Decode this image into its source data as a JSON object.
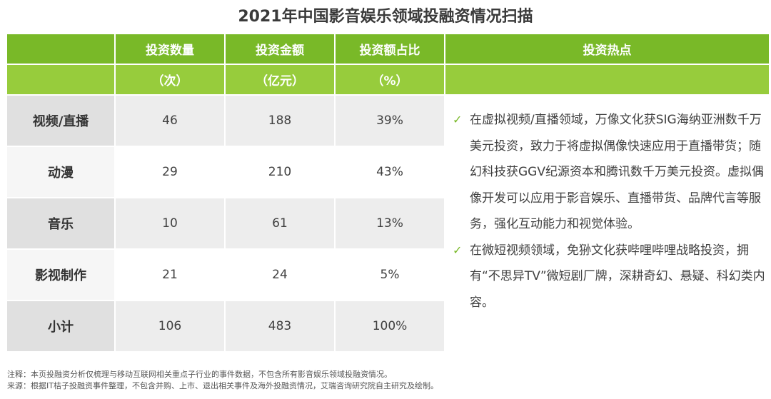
{
  "title": "2021年中国影音娱乐领域投融资情况扫描",
  "header": {
    "row1": [
      "",
      "投资数量",
      "投资金额",
      "投资额占比",
      "投资热点"
    ],
    "row2": [
      "",
      "（次）",
      "（亿元）",
      "（%）",
      ""
    ]
  },
  "rows": [
    {
      "category": "视频/直播",
      "count": "46",
      "amount": "188",
      "share": "39%"
    },
    {
      "category": "动漫",
      "count": "29",
      "amount": "210",
      "share": "43%"
    },
    {
      "category": "音乐",
      "count": "10",
      "amount": "61",
      "share": "13%"
    },
    {
      "category": "影视制作",
      "count": "21",
      "amount": "24",
      "share": "5%"
    },
    {
      "category": "小计",
      "count": "106",
      "amount": "483",
      "share": "100%"
    }
  ],
  "hot_icon": "checkmark-icon",
  "hot_check": "✓",
  "hot_points": [
    "在虚拟视频/直播领域，万像文化获SIG海纳亚洲数千万美元投资，致力于将虚拟偶像快速应用于直播带货；随幻科技获GGV纪源资本和腾讯数千万美元投资。虚拟偶像开发可以应用于影音娱乐、直播带货、品牌代言等服务，强化互动能力和视觉体验。",
    "在微短视频领域，免狲文化获哔哩哔哩战略投资，拥有“不思异TV”微短剧厂牌，深耕奇幻、悬疑、科幻类内容。"
  ],
  "notes": {
    "note": "注释：本页投融资分析仅梳理与移动互联网相关重点子行业的事件数据，不包含所有影音娱乐领域投融资情况。",
    "source": "来源：根据IT桔子投融资事件整理，不包含并购、上市、退出相关事件及海外投融资情况，艾瑞咨询研究院自主研究及绘制。"
  },
  "colors": {
    "header_dark": "#79b928",
    "header_light": "#97cc3c",
    "row_shade": "#ededed",
    "check": "#79b928"
  }
}
